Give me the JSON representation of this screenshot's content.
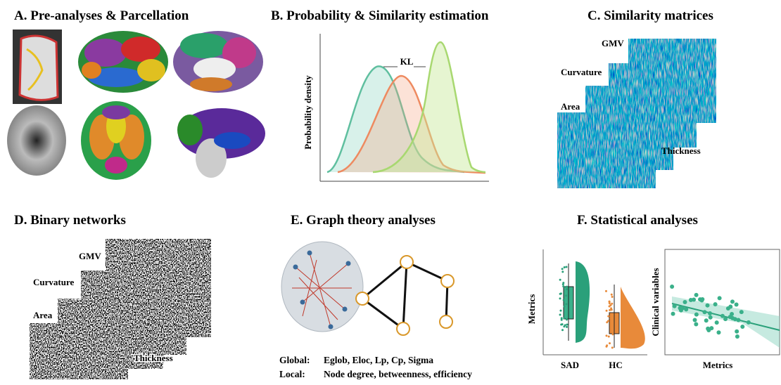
{
  "panels": {
    "a": {
      "title": "A. Pre-analyses & Parcellation"
    },
    "b": {
      "title": "B. Probability & Similarity estimation",
      "y_label": "Probability density",
      "annotation": "KL"
    },
    "c": {
      "title": "C. Similarity matrices",
      "layers": [
        "GMV",
        "Curvature",
        "Area",
        "Thickness"
      ]
    },
    "d": {
      "title": "D. Binary networks",
      "layers": [
        "GMV",
        "Curvature",
        "Area",
        "Thickness"
      ]
    },
    "e": {
      "title": "E. Graph theory analyses",
      "global": {
        "label": "Global:",
        "text": "Eglob, Eloc, Lp, Cp, Sigma"
      },
      "local": {
        "label": "Local:",
        "text": "Node degree, betweenness, efficiency"
      }
    },
    "f": {
      "title": "F. Statistical analyses",
      "raincloud_y_label": "Metrics",
      "groups": [
        "SAD",
        "HC"
      ],
      "scatter_y_label": "Clinical variables",
      "scatter_x_label": "Metrics"
    }
  }
}
